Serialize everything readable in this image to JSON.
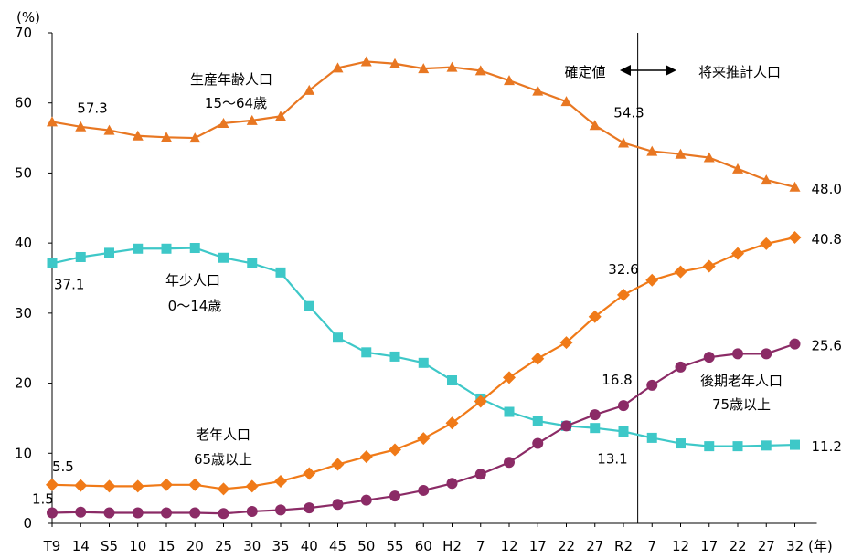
{
  "chart_data": {
    "type": "line",
    "y_unit": "(%)",
    "x_unit": "(年)",
    "ylim": [
      0,
      70
    ],
    "yticks": [
      0,
      10,
      20,
      30,
      40,
      50,
      60,
      70
    ],
    "categories": [
      "T9",
      "14",
      "S5",
      "10",
      "15",
      "20",
      "25",
      "30",
      "35",
      "40",
      "45",
      "50",
      "55",
      "60",
      "H2",
      "7",
      "12",
      "17",
      "22",
      "27",
      "R2",
      "7",
      "12",
      "17",
      "22",
      "27",
      "32"
    ],
    "divider_after_category_index": 20,
    "annotation_confirmed": "確定値",
    "annotation_projection": "将来推計人口",
    "colors": {
      "working": "#E87722",
      "young": "#3EC8C8",
      "elderly": "#F07A18",
      "late_elderly": "#8B2B66",
      "divider": "#000000",
      "axis": "#000000"
    },
    "series": [
      {
        "key": "working",
        "name": "生産年齢人口",
        "name_line2": "15～64歳",
        "marker": "triangle",
        "values": [
          57.3,
          56.6,
          56.1,
          55.3,
          55.1,
          55.0,
          57.1,
          57.5,
          58.1,
          61.8,
          65.0,
          65.9,
          65.6,
          64.9,
          65.1,
          64.6,
          63.2,
          61.7,
          60.2,
          56.8,
          54.3,
          53.1,
          52.7,
          52.2,
          50.6,
          49.0,
          48.0
        ]
      },
      {
        "key": "young",
        "name": "年少人口",
        "name_line2": "0～14歳",
        "marker": "square",
        "values": [
          37.1,
          38.0,
          38.6,
          39.2,
          39.2,
          39.3,
          37.9,
          37.1,
          35.8,
          31.0,
          26.5,
          24.4,
          23.8,
          22.9,
          20.4,
          17.8,
          15.9,
          14.6,
          13.9,
          13.6,
          13.1,
          12.2,
          11.4,
          11.0,
          11.0,
          11.1,
          11.2
        ]
      },
      {
        "key": "elderly",
        "name": "老年人口",
        "name_line2": "65歳以上",
        "marker": "diamond",
        "values": [
          5.5,
          5.4,
          5.3,
          5.3,
          5.5,
          5.5,
          4.9,
          5.3,
          6.0,
          7.1,
          8.4,
          9.5,
          10.5,
          12.1,
          14.3,
          17.4,
          20.8,
          23.5,
          25.8,
          29.5,
          32.6,
          34.7,
          35.9,
          36.7,
          38.5,
          39.9,
          40.8
        ]
      },
      {
        "key": "late_elderly",
        "name": "後期老年人口",
        "name_line2": "75歳以上",
        "marker": "circle",
        "values": [
          1.5,
          1.6,
          1.5,
          1.5,
          1.5,
          1.5,
          1.4,
          1.7,
          1.9,
          2.2,
          2.7,
          3.3,
          3.9,
          4.7,
          5.7,
          7.0,
          8.7,
          11.4,
          13.9,
          15.5,
          16.8,
          19.7,
          22.3,
          23.7,
          24.2,
          24.2,
          25.6
        ]
      }
    ],
    "data_labels": [
      {
        "text": "57.3",
        "series": "working",
        "index": 0
      },
      {
        "text": "54.3",
        "series": "working",
        "index": 20
      },
      {
        "text": "48.0",
        "series": "working",
        "index": 26
      },
      {
        "text": "37.1",
        "series": "young",
        "index": 0
      },
      {
        "text": "13.1",
        "series": "young",
        "index": 20
      },
      {
        "text": "11.2",
        "series": "young",
        "index": 26
      },
      {
        "text": "5.5",
        "series": "elderly",
        "index": 0
      },
      {
        "text": "32.6",
        "series": "elderly",
        "index": 20
      },
      {
        "text": "40.8",
        "series": "elderly",
        "index": 26
      },
      {
        "text": "1.5",
        "series": "late_elderly",
        "index": 0
      },
      {
        "text": "16.8",
        "series": "late_elderly",
        "index": 20
      },
      {
        "text": "25.6",
        "series": "late_elderly",
        "index": 26
      }
    ]
  }
}
